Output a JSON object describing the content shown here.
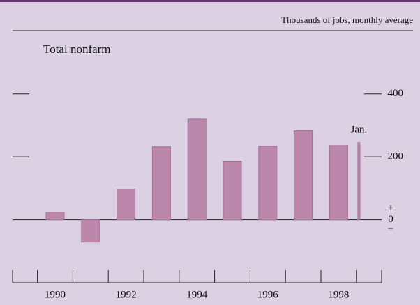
{
  "chart_data": {
    "type": "bar",
    "unit_label": "Thousands of jobs, monthly average",
    "title": "Total nonfarm",
    "categories": [
      "1990",
      null,
      "1992",
      null,
      "1994",
      null,
      "1996",
      null,
      "1998"
    ],
    "values": [
      24,
      -71,
      97,
      232,
      320,
      186,
      234,
      283,
      236
    ],
    "latest": {
      "label": "Jan.",
      "value": 245
    },
    "color": "#bb88ab",
    "ylim": [
      -200,
      500
    ],
    "yticks": [
      0,
      200,
      400
    ],
    "zero_signs": [
      "+",
      "−"
    ]
  }
}
